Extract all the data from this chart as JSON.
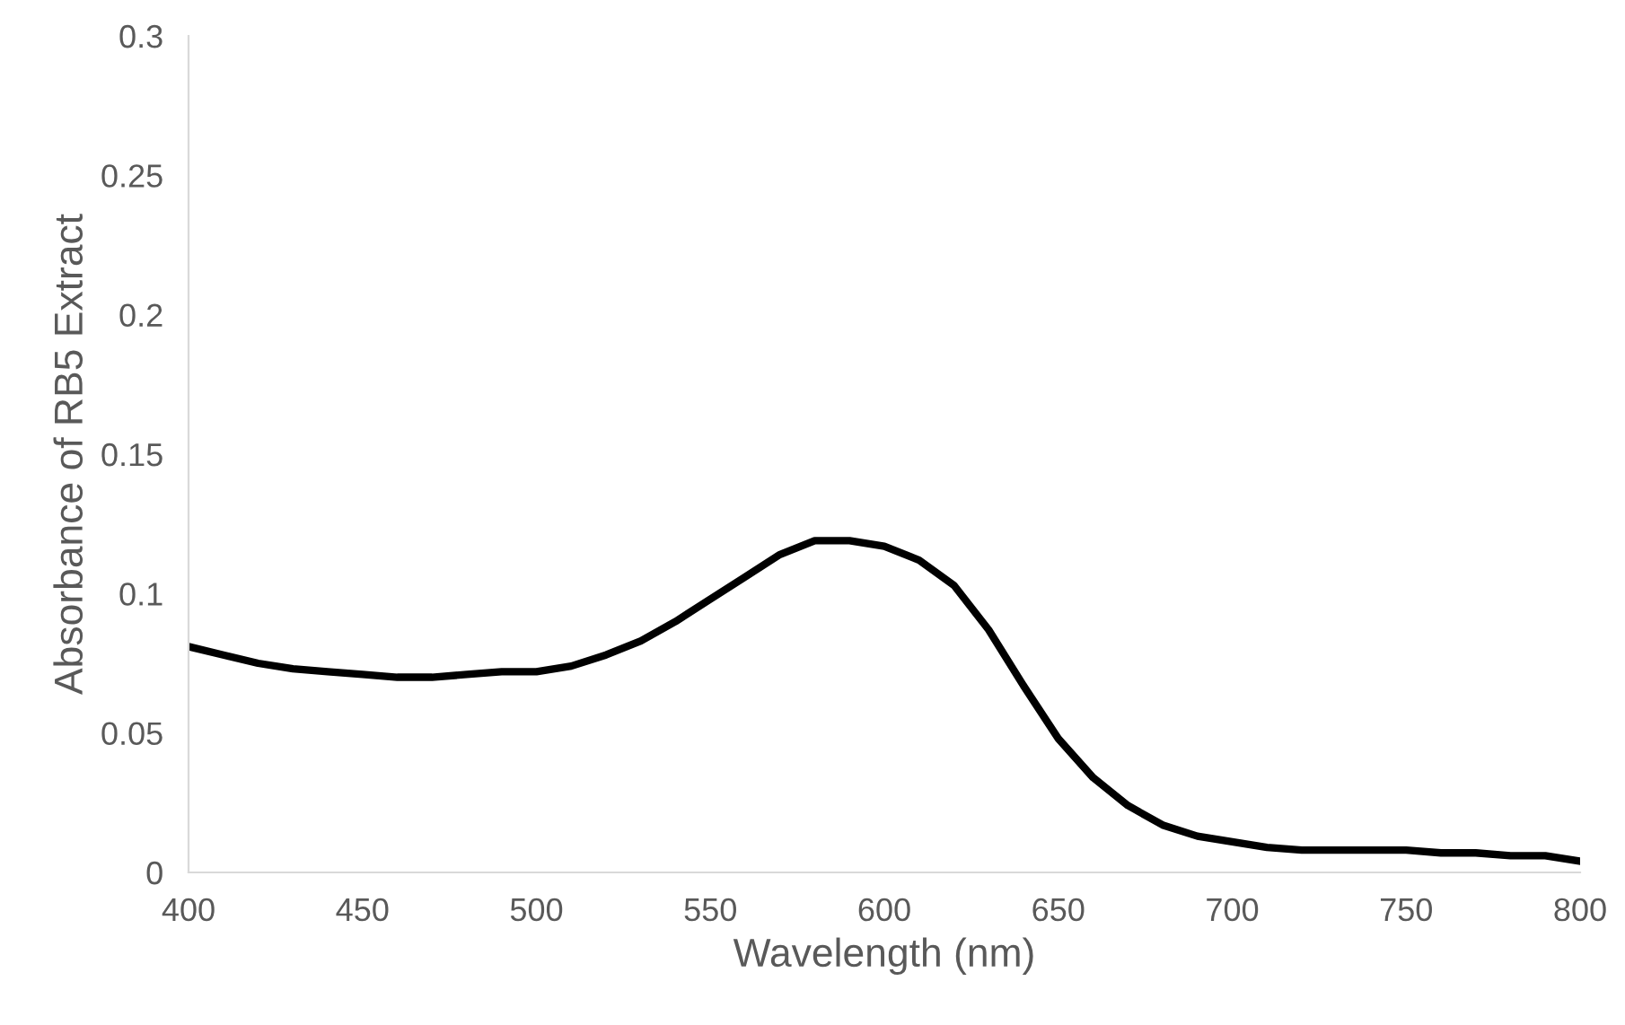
{
  "chart_data": {
    "type": "line",
    "xlabel": "Wavelength (nm)",
    "ylabel": "Absorbance of RB5 Extract",
    "x": [
      400,
      410,
      420,
      430,
      440,
      450,
      460,
      470,
      480,
      490,
      500,
      510,
      520,
      530,
      540,
      550,
      560,
      570,
      580,
      590,
      600,
      610,
      620,
      630,
      640,
      650,
      660,
      670,
      680,
      690,
      700,
      710,
      720,
      730,
      740,
      750,
      760,
      770,
      780,
      790,
      800
    ],
    "series": [
      {
        "color": "#000000",
        "values": [
          0.081,
          0.078,
          0.075,
          0.073,
          0.072,
          0.071,
          0.07,
          0.07,
          0.071,
          0.072,
          0.072,
          0.074,
          0.078,
          0.083,
          0.09,
          0.098,
          0.106,
          0.114,
          0.119,
          0.119,
          0.117,
          0.112,
          0.103,
          0.087,
          0.067,
          0.048,
          0.034,
          0.024,
          0.017,
          0.013,
          0.011,
          0.009,
          0.008,
          0.008,
          0.008,
          0.008,
          0.007,
          0.007,
          0.006,
          0.006,
          0.004
        ]
      }
    ],
    "xlim": [
      400,
      800
    ],
    "xticks": [
      400,
      450,
      500,
      550,
      600,
      650,
      700,
      750,
      800
    ],
    "ylim": [
      0,
      0.3
    ],
    "yticks": [
      0,
      0.05,
      0.1,
      0.15,
      0.2,
      0.25,
      0.3
    ],
    "grid": false,
    "legend": false,
    "marker": "none",
    "line_style": "solid"
  }
}
